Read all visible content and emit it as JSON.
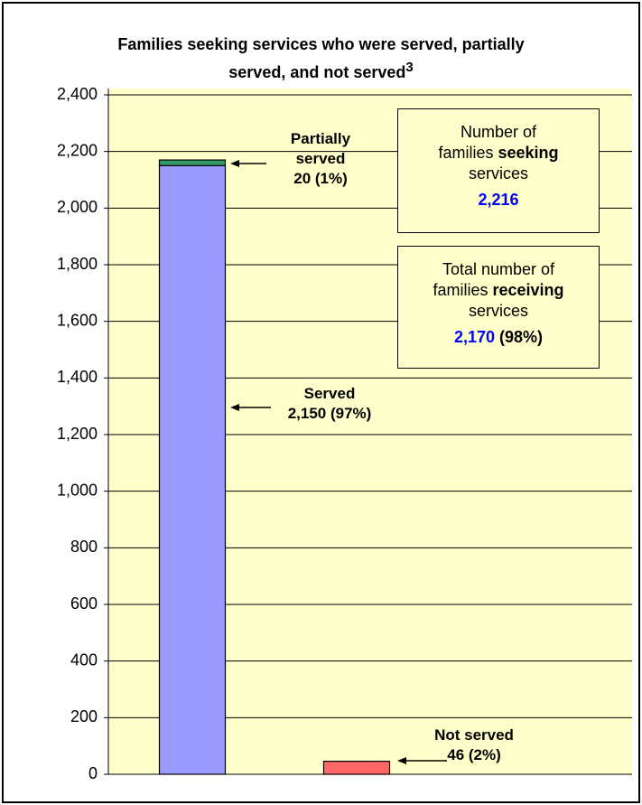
{
  "chart_data": {
    "type": "stacked_bar",
    "title": "Families seeking services who were served, partially served, and not served",
    "title_note": "3",
    "categories": [
      null,
      null
    ],
    "series": [
      {
        "name": "Served",
        "color": "#9999ff",
        "values": [
          2150,
          null
        ],
        "value_labels": [
          "2,150 (97%)",
          null
        ]
      },
      {
        "name": "Partially served",
        "color": "#339966",
        "values": [
          20,
          null
        ],
        "value_labels": [
          "20 (1%)",
          null
        ]
      },
      {
        "name": "Not served",
        "color": "#ff6666",
        "values": [
          null,
          46
        ],
        "value_labels": [
          null,
          "46 (2%)"
        ]
      }
    ],
    "ylim": [
      0,
      2400
    ],
    "yticks": [
      0,
      200,
      400,
      600,
      800,
      {
        "value": 1000,
        "label": "1,000"
      },
      {
        "value": 1200,
        "label": "1,200"
      },
      {
        "value": 1400,
        "label": "1,400"
      },
      {
        "value": 1600,
        "label": "1,600"
      },
      {
        "value": 1800,
        "label": "1,800"
      },
      {
        "value": 2000,
        "label": "2,000"
      },
      {
        "value": 2200,
        "label": "2,200"
      },
      {
        "value": 2400,
        "label": "2,400"
      }
    ],
    "grid": true,
    "background": "#ffffcc",
    "boxes": [
      {
        "lines": [
          [
            {
              "text": "Number of"
            }
          ],
          [
            {
              "text": "families "
            },
            {
              "text": "seeking",
              "bold": true
            }
          ],
          [
            {
              "text": "services"
            }
          ]
        ],
        "value_label": "2,216",
        "value_color": "#0000ff"
      },
      {
        "lines": [
          [
            {
              "text": "Total number of"
            }
          ],
          [
            {
              "text": "families "
            },
            {
              "text": "receiving",
              "bold": true
            }
          ],
          [
            {
              "text": "services"
            }
          ]
        ],
        "value_label": "2,170",
        "value_color": "#0000ff",
        "value_suffix": " (98%)"
      }
    ]
  }
}
